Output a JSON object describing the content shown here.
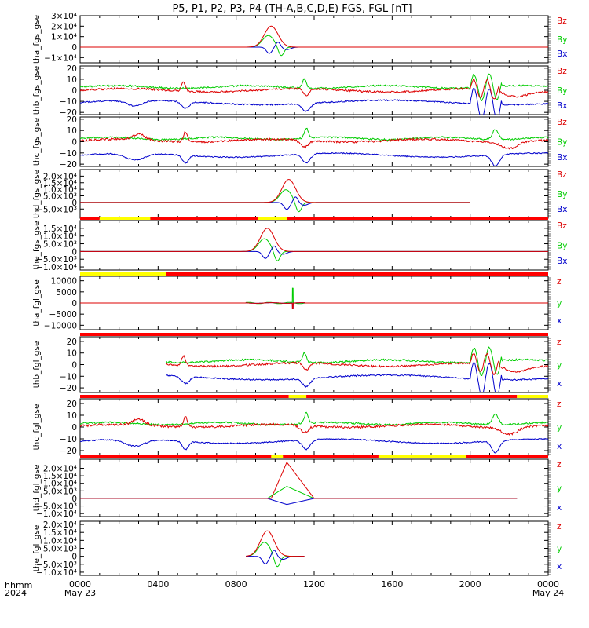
{
  "title": "P5, P1, P2, P3, P4 (TH-A,B,C,D,E) FGS, FGL [nT]",
  "x_axis": {
    "corner_labels": [
      "hhmm",
      "2024"
    ],
    "ticks": [
      "0000",
      "0400",
      "0800",
      "1200",
      "1600",
      "2000",
      "0000"
    ],
    "dates": [
      "May 23",
      "May 24"
    ]
  },
  "chart_data": [
    {
      "type": "line",
      "name": "tha_fgs_gse",
      "ylabel": "tha_fgs_gse",
      "ylim": [
        -15000,
        30000
      ],
      "ticks": [
        {
          "v": 30000,
          "t": "3×10⁴"
        },
        {
          "v": 20000,
          "t": "2×10⁴"
        },
        {
          "v": 10000,
          "t": "1×10⁴"
        },
        {
          "v": 0,
          "t": "0"
        },
        {
          "v": -10000,
          "t": "−1×10⁴"
        }
      ],
      "legend": [
        "Bz",
        "By",
        "Bx"
      ],
      "span": [
        0,
        24
      ],
      "kind": "spike",
      "peak_t": 9.8,
      "peak": 20000,
      "end_t": 11.0,
      "state_bar": null
    },
    {
      "type": "line",
      "name": "thb_fgs_gse",
      "ylabel": "thb_fgs_gse",
      "ylim": [
        -22,
        22
      ],
      "ticks": [
        {
          "v": 20,
          "t": "20"
        },
        {
          "v": 10,
          "t": "10"
        },
        {
          "v": 0,
          "t": "0"
        },
        {
          "v": -10,
          "t": "−10"
        },
        {
          "v": -20,
          "t": "−20"
        }
      ],
      "legend": [
        "Bz",
        "By",
        "Bx"
      ],
      "span": [
        0,
        24
      ],
      "kind": "field_b",
      "state_bar": null
    },
    {
      "type": "line",
      "name": "thc_fgs_gse",
      "ylabel": "thc_fgs_gse",
      "ylim": [
        -22,
        22
      ],
      "ticks": [
        {
          "v": 20,
          "t": "20"
        },
        {
          "v": 10,
          "t": "10"
        },
        {
          "v": 0,
          "t": "0"
        },
        {
          "v": -10,
          "t": "−10"
        },
        {
          "v": -20,
          "t": "−20"
        }
      ],
      "legend": [
        "Bz",
        "By",
        "Bx"
      ],
      "span": [
        0,
        24
      ],
      "kind": "field_c",
      "state_bar": null
    },
    {
      "type": "line",
      "name": "thd_fgs_gse",
      "ylabel": "thd_fgs_gse",
      "ylim": [
        -12000,
        25000
      ],
      "ticks": [
        {
          "v": 20000,
          "t": "2.0×10⁴"
        },
        {
          "v": 15000,
          "t": "1.5×10⁴"
        },
        {
          "v": 10000,
          "t": "1.0×10⁴"
        },
        {
          "v": 5000,
          "t": "5.0×10³"
        },
        {
          "v": 0,
          "t": "0"
        },
        {
          "v": -5000,
          "t": "−5.0×10³"
        }
      ],
      "legend": [
        "Bz",
        "By",
        "Bx"
      ],
      "span": [
        0,
        20
      ],
      "kind": "spike",
      "peak_t": 10.7,
      "peak": 17500,
      "end_t": 12.0,
      "state_bar": null
    },
    {
      "type": "line",
      "name": "the_fgs_gse",
      "ylabel": "the_fgs_gse",
      "ylim": [
        -12000,
        20000
      ],
      "ticks": [
        {
          "v": 15000,
          "t": "1.5×10⁴"
        },
        {
          "v": 10000,
          "t": "1.0×10⁴"
        },
        {
          "v": 5000,
          "t": "5.0×10³"
        },
        {
          "v": 0,
          "t": "0"
        },
        {
          "v": -5000,
          "t": "−5.0×10³"
        },
        {
          "v": -10000,
          "t": "−1.0×10⁴"
        }
      ],
      "legend": [
        "Bz",
        "By",
        "Bx"
      ],
      "span": [
        0,
        24
      ],
      "kind": "spike",
      "peak_t": 9.6,
      "peak": 15000,
      "end_t": 11.0,
      "state_bar": [
        [
          "red",
          0,
          1
        ],
        [
          "yellow",
          1,
          3.6
        ],
        [
          "red",
          3.6,
          9.1
        ],
        [
          "yellow",
          9.1,
          10.6
        ],
        [
          "red",
          10.6,
          24
        ]
      ]
    },
    {
      "type": "line",
      "name": "tha_fgl_gse",
      "ylabel": "tha_fgl_gse",
      "ylim": [
        -12000,
        12000
      ],
      "ticks": [
        {
          "v": 10000,
          "t": "10000"
        },
        {
          "v": 5000,
          "t": "5000"
        },
        {
          "v": 0,
          "t": "0"
        },
        {
          "v": -5000,
          "t": "−5000"
        },
        {
          "v": -10000,
          "t": "−10000"
        }
      ],
      "legend": [
        "z",
        "y",
        "x"
      ],
      "span": [
        0,
        24
      ],
      "kind": "fgl_a",
      "state_bar": [
        [
          "yellow",
          0,
          4.4
        ],
        [
          "red",
          4.4,
          24
        ]
      ]
    },
    {
      "type": "line",
      "name": "thb_fgl_gse",
      "ylabel": "thb_fgl_gse",
      "ylim": [
        -24,
        24
      ],
      "ticks": [
        {
          "v": 20,
          "t": "20"
        },
        {
          "v": 10,
          "t": "10"
        },
        {
          "v": 0,
          "t": "0"
        },
        {
          "v": -10,
          "t": "−10"
        },
        {
          "v": -20,
          "t": "−20"
        }
      ],
      "legend": [
        "z",
        "y",
        "x"
      ],
      "span": [
        4.4,
        24
      ],
      "kind": "field_b",
      "state_bar": [
        [
          "red",
          0,
          24
        ]
      ]
    },
    {
      "type": "line",
      "name": "thc_fgl_gse",
      "ylabel": "thc_fgl_gse",
      "ylim": [
        -24,
        24
      ],
      "ticks": [
        {
          "v": 20,
          "t": "20"
        },
        {
          "v": 10,
          "t": "10"
        },
        {
          "v": 0,
          "t": "0"
        },
        {
          "v": -10,
          "t": "−10"
        },
        {
          "v": -20,
          "t": "−20"
        }
      ],
      "legend": [
        "z",
        "y",
        "x"
      ],
      "span": [
        0,
        24
      ],
      "kind": "field_c",
      "state_bar": [
        [
          "red",
          0,
          10.7
        ],
        [
          "yellow",
          10.7,
          11.6
        ],
        [
          "red",
          11.6,
          22.4
        ],
        [
          "yellow",
          22.4,
          24
        ]
      ]
    },
    {
      "type": "line",
      "name": "thd_fgl_gse",
      "ylabel": "thd_fgl_gse",
      "ylim": [
        -12000,
        26000
      ],
      "ticks": [
        {
          "v": 20000,
          "t": "2.0×10⁴"
        },
        {
          "v": 15000,
          "t": "1.5×10⁴"
        },
        {
          "v": 10000,
          "t": "1.0×10⁴"
        },
        {
          "v": 5000,
          "t": "5.0×10³"
        },
        {
          "v": 0,
          "t": "0"
        },
        {
          "v": -5000,
          "t": "−5.0×10³"
        },
        {
          "v": -10000,
          "t": "−1.0×10⁴"
        }
      ],
      "legend": [
        "z",
        "y",
        "x"
      ],
      "span": [
        0,
        22.4
      ],
      "kind": "fgl_d",
      "state_bar": [
        [
          "red",
          0,
          9.8
        ],
        [
          "yellow",
          9.8,
          10.4
        ],
        [
          "red",
          10.4,
          15.3
        ],
        [
          "yellow",
          15.3,
          19.8
        ],
        [
          "red",
          19.8,
          24
        ]
      ]
    },
    {
      "type": "line",
      "name": "the_fgl_gse",
      "ylabel": "the_fgl_gse",
      "ylim": [
        -12000,
        22000
      ],
      "ticks": [
        {
          "v": 20000,
          "t": "2.0×10⁴"
        },
        {
          "v": 15000,
          "t": "1.5×10⁴"
        },
        {
          "v": 10000,
          "t": "1.0×10⁴"
        },
        {
          "v": 5000,
          "t": "5.0×10³"
        },
        {
          "v": 0,
          "t": "0"
        },
        {
          "v": -5000,
          "t": "−5.0×10³"
        },
        {
          "v": -10000,
          "t": "−1.0×10⁴"
        }
      ],
      "legend": [
        "z",
        "y",
        "x"
      ],
      "span": [
        8.5,
        11.5
      ],
      "kind": "spike",
      "peak_t": 9.6,
      "peak": 16000,
      "end_t": 11.0,
      "state_bar": null
    }
  ],
  "colors": {
    "z": "#dd0000",
    "y": "#00cc00",
    "x": "#0000cc",
    "state_red": "#ff0000",
    "state_yellow": "#ffff00"
  }
}
